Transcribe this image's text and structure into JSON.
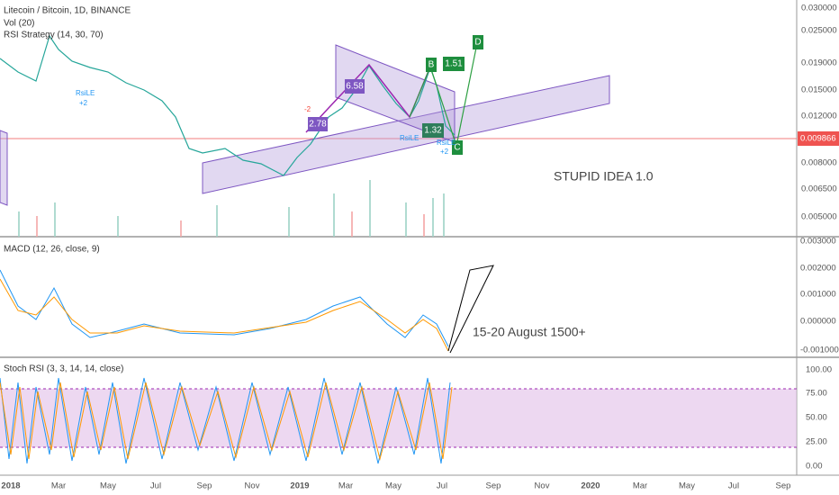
{
  "header": {
    "symbol": "Litecoin / Bitcoin, 1D, BINANCE",
    "indicators": [
      "Vol (20)",
      "RSI Strategy (14, 30, 70)"
    ]
  },
  "price_axis": [
    "0.030000",
    "0.025000",
    "0.019000",
    "0.015000",
    "0.012000",
    "0.008000",
    "0.006500",
    "0.005000"
  ],
  "current_price": "0.009866",
  "macd": {
    "label": "MACD (12, 26, close, 9)",
    "axis": [
      "0.003000",
      "0.002000",
      "0.001000",
      "0.000000",
      "-0.001000"
    ]
  },
  "stoch": {
    "label": "Stoch RSI (3, 3, 14, 14, close)",
    "axis": [
      "100.00",
      "75.00",
      "50.00",
      "25.00",
      "0.00"
    ]
  },
  "time_axis": [
    "2018",
    "Mar",
    "May",
    "Jul",
    "Sep",
    "Nov",
    "2019",
    "Mar",
    "May",
    "Jul",
    "Sep",
    "Nov",
    "2020",
    "Mar",
    "May",
    "Jul",
    "Sep"
  ],
  "annotations": {
    "idea": "STUPID IDEA 1.0",
    "forecast": "15-20 August 1500+"
  },
  "pattern": {
    "ab": "2.78",
    "bc": "6.58",
    "xd": "1.51",
    "cd": "1.32",
    "d": "D",
    "c": "C",
    "b": "B"
  },
  "signals": {
    "rsile": "RsiLE",
    "plus": "+2",
    "minus": "-2"
  }
}
